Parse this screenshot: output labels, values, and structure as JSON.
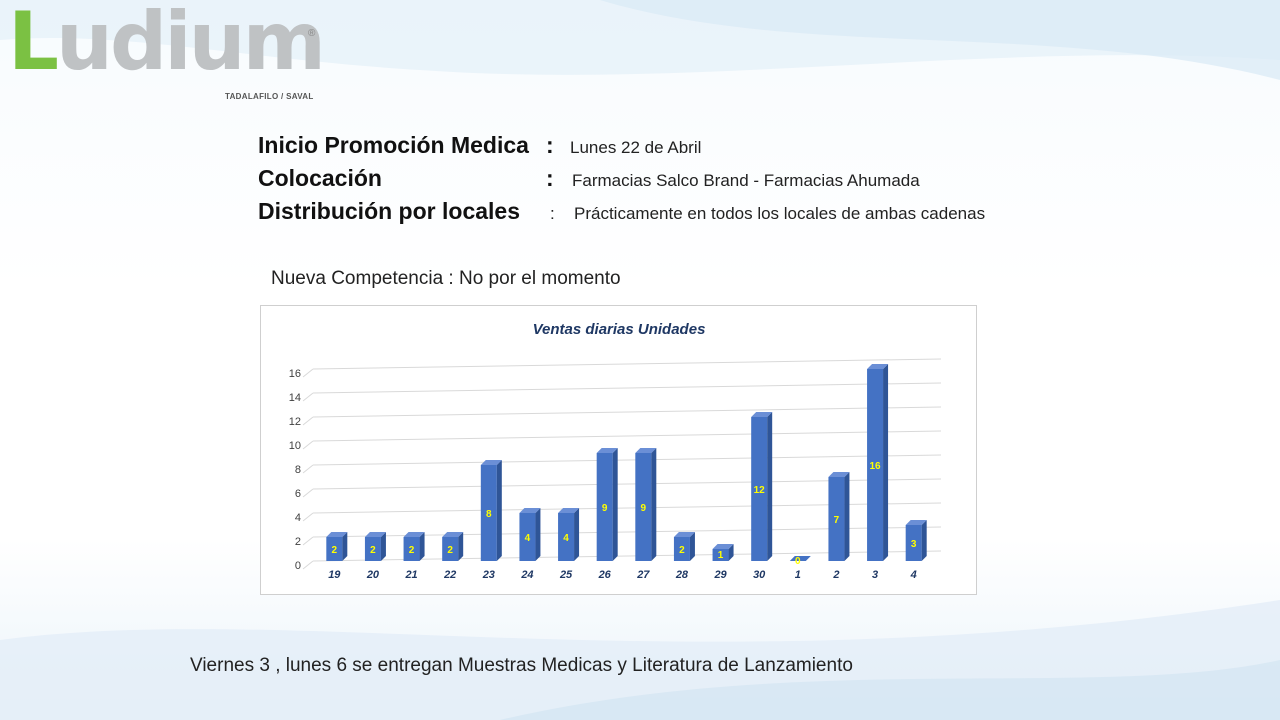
{
  "logo": {
    "brand": "Ludium",
    "brand_first": "L",
    "brand_rest": "udium",
    "registered": "®",
    "subtitle": "TADALAFILO / SAVAL"
  },
  "info": {
    "rows": [
      {
        "label": "Inicio Promoción Medica",
        "value": "Lunes 22 de Abril"
      },
      {
        "label": "Colocación",
        "value": "Farmacias  Salco Brand  - Farmacias Ahumada"
      },
      {
        "label": "Distribución por locales",
        "value": "Prácticamente en todos los locales de ambas  cadenas"
      }
    ]
  },
  "competencia": "Nueva Competencia :  No por el momento",
  "footer": "Viernes 3  , lunes 6 se entregan Muestras Medicas  y Literatura de Lanzamiento",
  "colors": {
    "bar": "#4472c4",
    "bar_side": "#2f5597",
    "data_label": "#ffff00",
    "title": "#1f3864"
  },
  "chart_data": {
    "type": "bar",
    "title": "Ventas diarias  Unidades",
    "categories": [
      "19",
      "20",
      "21",
      "22",
      "23",
      "24",
      "25",
      "26",
      "27",
      "28",
      "29",
      "30",
      "1",
      "2",
      "3",
      "4"
    ],
    "values": [
      2,
      2,
      2,
      2,
      8,
      4,
      4,
      9,
      9,
      2,
      1,
      12,
      0,
      7,
      16,
      3
    ],
    "ylim": [
      0,
      16
    ],
    "yticks": [
      0,
      2,
      4,
      6,
      8,
      10,
      12,
      14,
      16
    ],
    "grid": true,
    "legend": "none"
  }
}
